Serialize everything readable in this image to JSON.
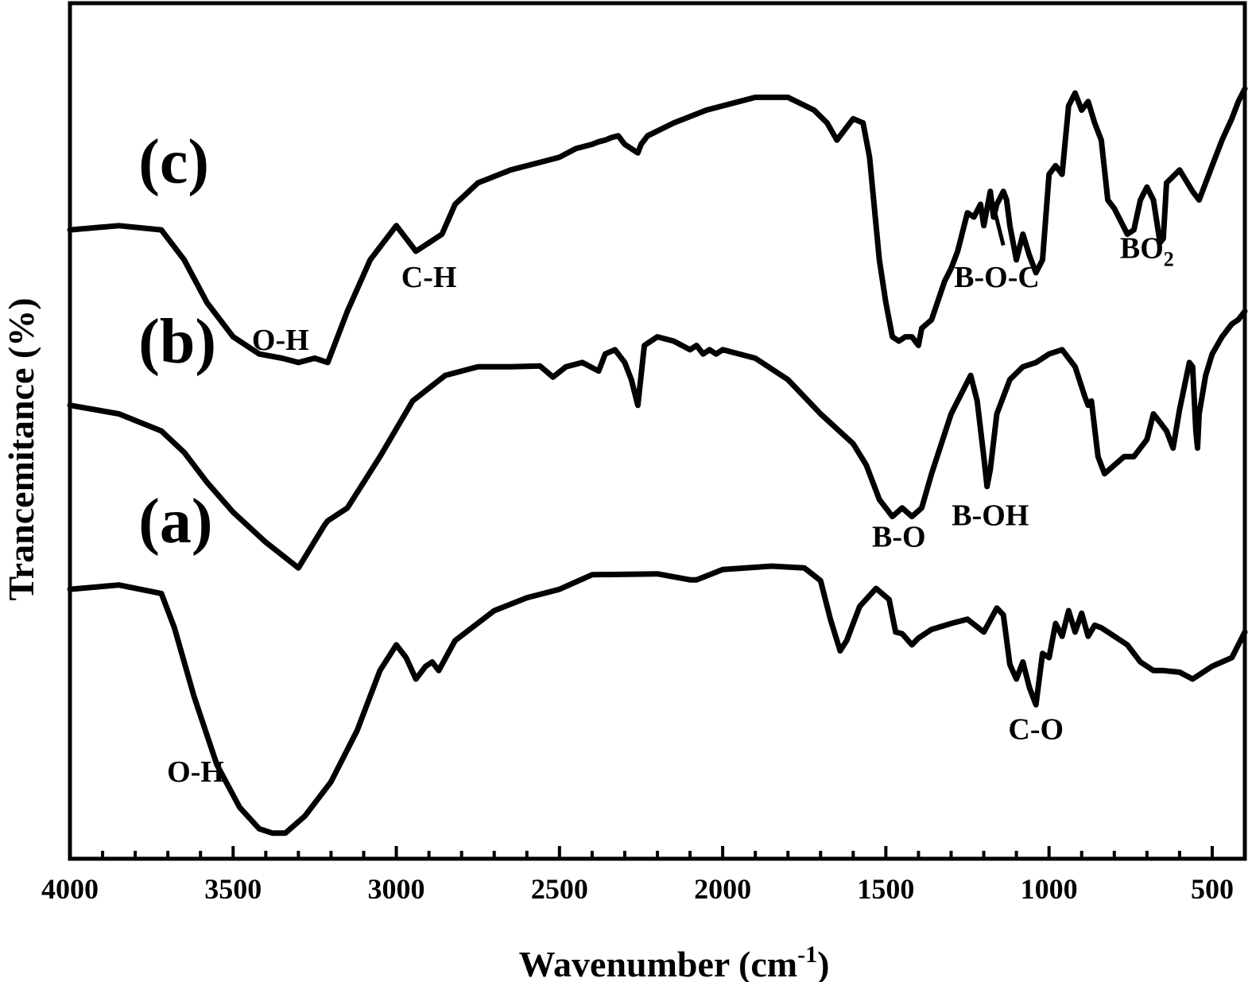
{
  "chart_data": {
    "type": "line",
    "title": "",
    "xlabel": "Wavenumber",
    "xlabel_unit_base": "cm",
    "xlabel_unit_sup": "-1",
    "ylabel": "Trancemitance (%)",
    "xlim": [
      4000,
      400
    ],
    "x_reversed": true,
    "y_scale": "offset traces, arbitrary units",
    "ylim": [
      0,
      100
    ],
    "grid": false,
    "xticks": [
      4000,
      3500,
      3000,
      2500,
      2000,
      1500,
      1000,
      500
    ],
    "xtick_labels": [
      "4000",
      "3500",
      "3000",
      "2500",
      "2000",
      "1500",
      "1000",
      "500"
    ],
    "series": [
      {
        "name": "(a)",
        "x": [
          4000,
          3850,
          3720,
          3680,
          3620,
          3550,
          3480,
          3420,
          3380,
          3340,
          3280,
          3200,
          3120,
          3050,
          3000,
          2970,
          2940,
          2910,
          2890,
          2870,
          2820,
          2700,
          2600,
          2500,
          2400,
          2200,
          2100,
          2080,
          2000,
          1850,
          1750,
          1700,
          1670,
          1640,
          1620,
          1580,
          1530,
          1490,
          1470,
          1450,
          1420,
          1400,
          1360,
          1300,
          1250,
          1200,
          1160,
          1140,
          1120,
          1100,
          1080,
          1060,
          1040,
          1020,
          1000,
          980,
          960,
          940,
          920,
          900,
          880,
          860,
          840,
          800,
          760,
          720,
          680,
          650,
          600,
          560,
          520,
          500,
          470,
          440,
          420,
          400
        ],
        "y": [
          31.5,
          32.0,
          31.0,
          27.0,
          19.0,
          11.0,
          6.0,
          3.5,
          3.0,
          3.0,
          5.0,
          9.0,
          15.0,
          22.0,
          25.0,
          23.5,
          21.0,
          22.5,
          23.0,
          22.0,
          25.5,
          29.0,
          30.5,
          31.5,
          33.2,
          33.3,
          32.6,
          32.6,
          33.8,
          34.2,
          34.0,
          32.5,
          28.0,
          24.3,
          25.5,
          29.5,
          31.6,
          30.3,
          26.5,
          26.3,
          25.0,
          25.8,
          26.8,
          27.5,
          28.0,
          26.5,
          29.3,
          28.5,
          22.7,
          21.0,
          23.0,
          20.0,
          18.0,
          24.0,
          23.5,
          27.5,
          26.0,
          29.0,
          26.5,
          28.7,
          26.0,
          27.3,
          27.0,
          26.0,
          25.0,
          23.0,
          22.0,
          22.0,
          21.8,
          21.0,
          22.0,
          22.5,
          23.0,
          23.5,
          25.0,
          26.5
        ]
      },
      {
        "name": "(b)",
        "x": [
          4000,
          3850,
          3720,
          3650,
          3580,
          3500,
          3400,
          3300,
          3220,
          3210,
          3150,
          3050,
          2950,
          2850,
          2750,
          2650,
          2560,
          2520,
          2480,
          2430,
          2380,
          2360,
          2330,
          2300,
          2280,
          2260,
          2240,
          2200,
          2150,
          2100,
          2080,
          2060,
          2040,
          2020,
          2000,
          1900,
          1800,
          1700,
          1600,
          1560,
          1520,
          1480,
          1450,
          1420,
          1390,
          1360,
          1300,
          1260,
          1240,
          1220,
          1200,
          1190,
          1180,
          1160,
          1120,
          1080,
          1040,
          1000,
          960,
          920,
          890,
          880,
          870,
          850,
          830,
          800,
          770,
          740,
          700,
          680,
          660,
          640,
          620,
          600,
          570,
          560,
          550,
          545,
          540,
          520,
          500,
          470,
          440,
          420,
          400
        ],
        "y": [
          53.0,
          52.0,
          50.0,
          47.5,
          44.0,
          40.5,
          37.0,
          34.0,
          39.0,
          39.5,
          41.0,
          47.0,
          53.5,
          56.5,
          57.5,
          57.5,
          57.6,
          56.3,
          57.5,
          58.0,
          57.0,
          59.0,
          59.5,
          58.0,
          56.0,
          53.0,
          60.0,
          61.0,
          60.5,
          59.5,
          60.0,
          59.0,
          59.5,
          59.0,
          59.5,
          58.5,
          56.0,
          52.0,
          48.5,
          46.0,
          42.0,
          40.0,
          41.0,
          40.0,
          41.0,
          45.0,
          52.0,
          55.0,
          56.5,
          53.5,
          47.0,
          43.5,
          45.5,
          52.0,
          56.0,
          57.5,
          58.0,
          59.0,
          59.5,
          57.5,
          54.0,
          53.0,
          53.5,
          47.0,
          45.0,
          46.0,
          47.0,
          47.0,
          49.0,
          52.0,
          51.0,
          50.0,
          48.0,
          52.5,
          58.0,
          57.5,
          50.0,
          48.0,
          52.0,
          56.5,
          59.0,
          61.0,
          62.5,
          63.0,
          64.0
        ]
      },
      {
        "name": "(c)",
        "x": [
          4000,
          3850,
          3720,
          3650,
          3580,
          3500,
          3420,
          3350,
          3300,
          3250,
          3210,
          3150,
          3080,
          3000,
          2970,
          2940,
          2900,
          2860,
          2820,
          2750,
          2650,
          2550,
          2500,
          2450,
          2400,
          2380,
          2360,
          2340,
          2320,
          2300,
          2280,
          2260,
          2250,
          2230,
          2150,
          2050,
          2000,
          1900,
          1800,
          1720,
          1680,
          1650,
          1620,
          1600,
          1570,
          1550,
          1520,
          1500,
          1480,
          1460,
          1440,
          1420,
          1400,
          1390,
          1360,
          1320,
          1300,
          1280,
          1250,
          1230,
          1210,
          1200,
          1180,
          1170,
          1160,
          1140,
          1130,
          1120,
          1100,
          1080,
          1060,
          1040,
          1020,
          1000,
          980,
          960,
          940,
          920,
          900,
          880,
          860,
          840,
          820,
          800,
          760,
          740,
          720,
          700,
          680,
          660,
          650,
          640,
          600,
          560,
          540,
          520,
          500,
          470,
          440,
          420,
          400
        ],
        "y": [
          73.5,
          74.0,
          73.5,
          70.0,
          65.0,
          61.0,
          59.0,
          58.5,
          58.0,
          58.5,
          58.0,
          64.0,
          70.0,
          74.0,
          72.5,
          71.0,
          72.0,
          73.0,
          76.5,
          79.0,
          80.5,
          81.5,
          82.0,
          83.0,
          83.5,
          83.8,
          84.0,
          84.3,
          84.5,
          83.5,
          83.0,
          82.5,
          83.5,
          84.5,
          86.0,
          87.5,
          88.0,
          89.0,
          89.0,
          87.5,
          86.0,
          84.0,
          85.5,
          86.5,
          86.0,
          82.0,
          70.0,
          65.0,
          61.0,
          60.5,
          61.0,
          61.0,
          60.0,
          62.0,
          63.0,
          67.5,
          69.0,
          71.0,
          75.5,
          75.0,
          76.5,
          74.0,
          78.0,
          75.0,
          76.5,
          78.0,
          77.0,
          74.0,
          70.0,
          73.0,
          70.5,
          68.5,
          70.0,
          80.0,
          81.0,
          80.0,
          88.0,
          89.5,
          87.5,
          88.5,
          86.0,
          84.0,
          77.0,
          76.0,
          73.0,
          73.5,
          77.0,
          78.5,
          77.0,
          72.0,
          72.5,
          79.0,
          80.5,
          78.0,
          77.0,
          79.0,
          81.0,
          84.0,
          86.5,
          88.5,
          90.0
        ]
      }
    ],
    "series_labels": [
      {
        "text": "(a)",
        "x": 3790,
        "y": 37
      },
      {
        "text": "(b)",
        "x": 3790,
        "y": 58
      },
      {
        "text": "(c)",
        "x": 3790,
        "y": 79
      }
    ],
    "annotations": [
      {
        "text": "O-H",
        "x": 3615,
        "y": 9,
        "sub": ""
      },
      {
        "text": "C-O",
        "x": 1040,
        "y": 14,
        "sub": ""
      },
      {
        "text": "B-O",
        "x": 1460,
        "y": 36.5,
        "sub": ""
      },
      {
        "text": "B-OH",
        "x": 1180,
        "y": 39,
        "sub": ""
      },
      {
        "text": "O-H",
        "x": 3355,
        "y": 59.5,
        "sub": ""
      },
      {
        "text": "C-H",
        "x": 2900,
        "y": 66.8,
        "sub": ""
      },
      {
        "text": "B-O-C",
        "x": 1160,
        "y": 66.8,
        "sub": ""
      },
      {
        "text": "BO",
        "x": 700,
        "y": 70.2,
        "sub": "2"
      }
    ],
    "pointer": {
      "x1": 1165,
      "y1": 75.5,
      "x2": 1140,
      "y2": 71.7
    }
  }
}
